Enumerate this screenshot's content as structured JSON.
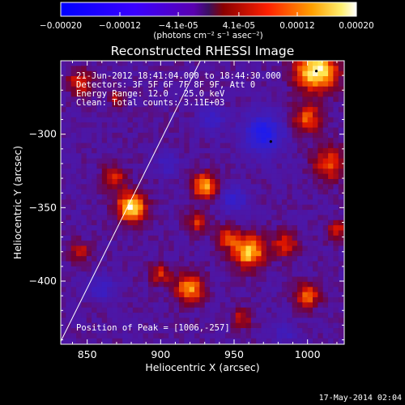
{
  "chart_data": {
    "type": "heatmap",
    "title": "Reconstructed RHESSI Image",
    "xlabel": "Heliocentric X (arcsec)",
    "ylabel": "Heliocentric Y (arcsec)",
    "xlim": [
      832,
      1025
    ],
    "ylim": [
      -443,
      -250
    ],
    "xticks": [
      850,
      900,
      950,
      1000
    ],
    "yticks": [
      -300,
      -350,
      -400
    ],
    "colorbar": {
      "label": "(photons cm⁻² s⁻¹ asec⁻²)",
      "range": [
        -0.0002,
        0.0002
      ],
      "ticks": [
        "-0.00020",
        "-0.00012",
        "-4.1e-05",
        "4.1e-05",
        "0.00012",
        "0.00020"
      ]
    },
    "info_lines": [
      "21-Jun-2012 18:41:04.000 to 18:44:30.000",
      "Detectors: 3F 5F 6F 7F 8F 9F, Att 0",
      "Energy Range: 12.0 - 25.0 keV",
      "Clean:  Total counts: 3.11E+03"
    ],
    "peak_label": "Position of Peak = [1006,-257]",
    "peak": [
      1006,
      -257
    ],
    "limb_line": [
      [
        832,
        -441
      ],
      [
        927,
        -250
      ]
    ],
    "blobs": [
      {
        "x": 1006,
        "y": -257,
        "s": 10,
        "v": 1.0
      },
      {
        "x": 1000,
        "y": -290,
        "s": 7,
        "v": 0.6
      },
      {
        "x": 1015,
        "y": -320,
        "s": 8,
        "v": 0.55
      },
      {
        "x": 880,
        "y": -350,
        "s": 7,
        "v": 0.95
      },
      {
        "x": 868,
        "y": -330,
        "s": 6,
        "v": 0.45
      },
      {
        "x": 930,
        "y": -335,
        "s": 6,
        "v": 0.8
      },
      {
        "x": 925,
        "y": -360,
        "s": 5,
        "v": 0.5
      },
      {
        "x": 960,
        "y": -380,
        "s": 8,
        "v": 0.85
      },
      {
        "x": 945,
        "y": -370,
        "s": 5,
        "v": 0.55
      },
      {
        "x": 985,
        "y": -375,
        "s": 6,
        "v": 0.5
      },
      {
        "x": 920,
        "y": -405,
        "s": 7,
        "v": 0.75
      },
      {
        "x": 900,
        "y": -395,
        "s": 5,
        "v": 0.45
      },
      {
        "x": 1000,
        "y": -410,
        "s": 6,
        "v": 0.6
      },
      {
        "x": 955,
        "y": -425,
        "s": 5,
        "v": 0.4
      },
      {
        "x": 845,
        "y": -265,
        "s": 6,
        "v": 0.5
      },
      {
        "x": 870,
        "y": -275,
        "s": 4,
        "v": 0.4
      },
      {
        "x": 845,
        "y": -380,
        "s": 5,
        "v": 0.4
      },
      {
        "x": 1020,
        "y": -365,
        "s": 5,
        "v": 0.45
      },
      {
        "x": 970,
        "y": -300,
        "s": 9,
        "v": -0.8
      },
      {
        "x": 935,
        "y": -290,
        "s": 6,
        "v": -0.4
      },
      {
        "x": 950,
        "y": -345,
        "s": 6,
        "v": -0.45
      },
      {
        "x": 905,
        "y": -320,
        "s": 5,
        "v": -0.35
      },
      {
        "x": 860,
        "y": -405,
        "s": 6,
        "v": -0.35
      },
      {
        "x": 985,
        "y": -435,
        "s": 5,
        "v": -0.3
      }
    ],
    "grid": false
  },
  "footer": {
    "timestamp": "17-May-2014 02:04"
  }
}
